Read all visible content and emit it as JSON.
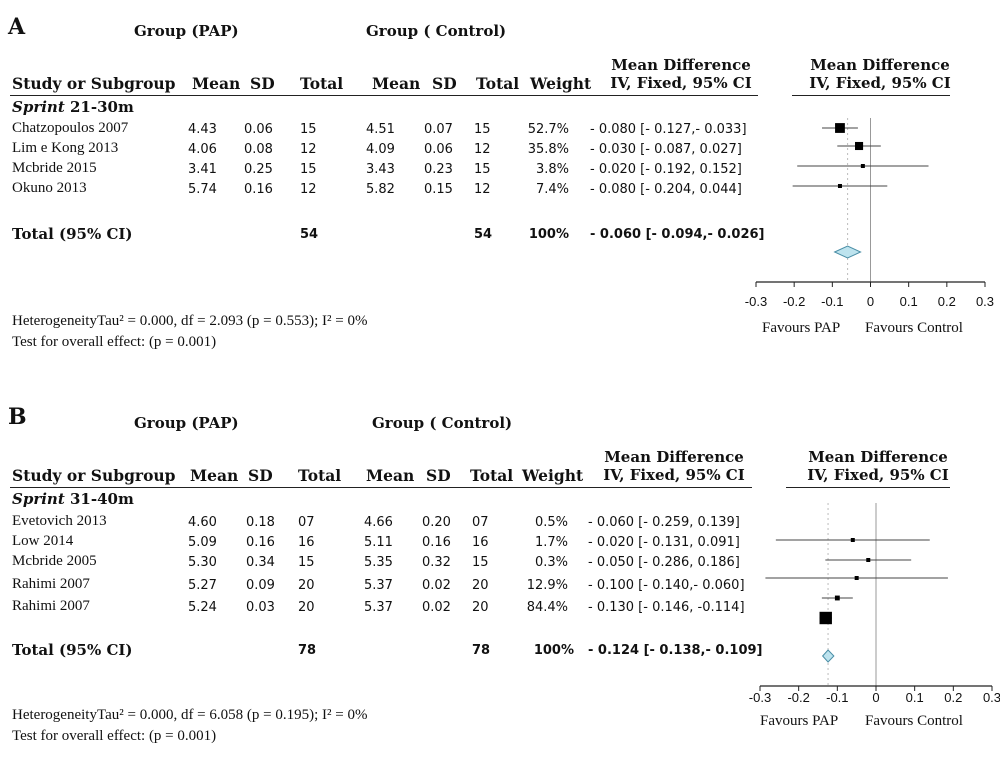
{
  "panels": [
    {
      "letter": "A",
      "group_pap": "Group (PAP)",
      "group_control": "Group ( Control)",
      "headers": {
        "study": "Study or Subgroup",
        "mean1": "Mean",
        "sd1": "SD",
        "total1": "Total",
        "mean2": "Mean",
        "sd2": "SD",
        "total2": "Total",
        "weight": "Weight",
        "md_line1": "Mean Difference",
        "md_line2": "IV, Fixed, 95% CI",
        "plot_line1": "Mean Difference",
        "plot_line2": "IV, Fixed, 95% CI"
      },
      "subgroup_italic": "Sprint",
      "subgroup_rest": " 21-30m",
      "rows": [
        {
          "study": "Chatzopoulos 2007",
          "mean1": "4.43",
          "sd1": "0.06",
          "total1": "15",
          "mean2": "4.51",
          "sd2": "0.07",
          "total2": "15",
          "weight": "52.7%",
          "ci_text": "- 0.080 [- 0.127,- 0.033]"
        },
        {
          "study": "Lim e Kong 2013",
          "mean1": "4.06",
          "sd1": "0.08",
          "total1": "12",
          "mean2": "4.09",
          "sd2": "0.06",
          "total2": "12",
          "weight": "35.8%",
          "ci_text": "- 0.030 [- 0.087,  0.027]"
        },
        {
          "study": "Mcbride 2015",
          "mean1": "3.41",
          "sd1": "0.25",
          "total1": "15",
          "mean2": "3.43",
          "sd2": "0.23",
          "total2": "15",
          "weight": "3.8%",
          "ci_text": "- 0.020 [- 0.192,  0.152]"
        },
        {
          "study": "Okuno 2013",
          "mean1": "5.74",
          "sd1": "0.16",
          "total1": "12",
          "mean2": "5.82",
          "sd2": "0.15",
          "total2": "12",
          "weight": "7.4%",
          "ci_text": "- 0.080 [- 0.204,  0.044]"
        }
      ],
      "total": {
        "label": "Total (95% CI)",
        "total1": "54",
        "total2": "54",
        "weight": "100%",
        "ci_text": "- 0.060 [- 0.094,- 0.026]"
      },
      "footer_line1": "HeterogeneityTau² = 0.000, df = 2.093 (p = 0.553); I² = 0%",
      "footer_line2": "Test for overall effect: (p = 0.001)",
      "axis_ticks": [
        "-0.3",
        "-0.2",
        "-0.1",
        "0",
        "0.1",
        "0.2",
        "0.3"
      ],
      "favours_left": "Favours PAP",
      "favours_right": "Favours Control"
    },
    {
      "letter": "B",
      "group_pap": "Group (PAP)",
      "group_control": "Group ( Control)",
      "headers": {
        "study": "Study or Subgroup",
        "mean1": "Mean",
        "sd1": "SD",
        "total1": "Total",
        "mean2": "Mean",
        "sd2": "SD",
        "total2": "Total",
        "weight": "Weight",
        "md_line1": "Mean Difference",
        "md_line2": "IV, Fixed, 95% CI",
        "plot_line1": "Mean Difference",
        "plot_line2": "IV, Fixed, 95% CI"
      },
      "subgroup_italic": "Sprint",
      "subgroup_rest": " 31-40m",
      "rows": [
        {
          "study": "Evetovich 2013",
          "mean1": "4.60",
          "sd1": "0.18",
          "total1": "07",
          "mean2": "4.66",
          "sd2": "0.20",
          "total2": "07",
          "weight": "0.5%",
          "ci_text": "- 0.060 [- 0.259,  0.139]"
        },
        {
          "study": "Low 2014",
          "mean1": "5.09",
          "sd1": "0.16",
          "total1": "16",
          "mean2": "5.11",
          "sd2": "0.16",
          "total2": "16",
          "weight": "1.7%",
          "ci_text": "- 0.020 [- 0.131,  0.091]"
        },
        {
          "study": "Mcbride 2005",
          "mean1": "5.30",
          "sd1": "0.34",
          "total1": "15",
          "mean2": "5.35",
          "sd2": "0.32",
          "total2": "15",
          "weight": "0.3%",
          "ci_text": "- 0.050 [- 0.286,  0.186]"
        },
        {
          "study": "Rahimi 2007",
          "mean1": "5.27",
          "sd1": "0.09",
          "total1": "20",
          "mean2": "5.37",
          "sd2": "0.02",
          "total2": "20",
          "weight": "12.9%",
          "ci_text": "- 0.100 [- 0.140,- 0.060]"
        },
        {
          "study": "Rahimi 2007",
          "mean1": "5.24",
          "sd1": "0.03",
          "total1": "20",
          "mean2": "5.37",
          "sd2": "0.02",
          "total2": "20",
          "weight": "84.4%",
          "ci_text": "- 0.130 [- 0.146, -0.114]"
        }
      ],
      "total": {
        "label": "Total (95% CI)",
        "total1": "78",
        "total2": "78",
        "weight": "100%",
        "ci_text": "- 0.124 [- 0.138,- 0.109]"
      },
      "footer_line1": "HeterogeneityTau² = 0.000, df = 6.058 (p = 0.195); I² = 0%",
      "footer_line2": "Test for overall effect: (p = 0.001)",
      "axis_ticks": [
        "-0.3",
        "-0.2",
        "-0.1",
        "0",
        "0.1",
        "0.2",
        "0.3"
      ],
      "favours_left": "Favours PAP",
      "favours_right": "Favours Control"
    }
  ],
  "colors": {
    "text": "#111111",
    "marker": "#000000",
    "diamond_fill": "#bde3ee",
    "diamond_stroke": "#4a8ea6",
    "ref_line": "#999999"
  },
  "chart_data": [
    {
      "type": "forest",
      "panel": "A",
      "xlim": [
        -0.3,
        0.3
      ],
      "xticks": [
        -0.3,
        -0.2,
        -0.1,
        0,
        0.1,
        0.2,
        0.3
      ],
      "points": [
        {
          "study": "Chatzopoulos 2007",
          "md": -0.08,
          "lower": -0.127,
          "upper": -0.033,
          "weight": 52.7
        },
        {
          "study": "Lim e Kong 2013",
          "md": -0.03,
          "lower": -0.087,
          "upper": 0.027,
          "weight": 35.8
        },
        {
          "study": "Mcbride 2015",
          "md": -0.02,
          "lower": -0.192,
          "upper": 0.152,
          "weight": 3.8
        },
        {
          "study": "Okuno 2013",
          "md": -0.08,
          "lower": -0.204,
          "upper": 0.044,
          "weight": 7.4
        }
      ],
      "pooled": {
        "md": -0.06,
        "lower": -0.094,
        "upper": -0.026
      }
    },
    {
      "type": "forest",
      "panel": "B",
      "xlim": [
        -0.3,
        0.3
      ],
      "xticks": [
        -0.3,
        -0.2,
        -0.1,
        0,
        0.1,
        0.2,
        0.3
      ],
      "points": [
        {
          "study": "Evetovich 2013",
          "md": -0.06,
          "lower": -0.259,
          "upper": 0.139,
          "weight": 0.5
        },
        {
          "study": "Low 2014",
          "md": -0.02,
          "lower": -0.131,
          "upper": 0.091,
          "weight": 1.7
        },
        {
          "study": "Mcbride 2005",
          "md": -0.05,
          "lower": -0.286,
          "upper": 0.186,
          "weight": 0.3
        },
        {
          "study": "Rahimi 2007",
          "md": -0.1,
          "lower": -0.14,
          "upper": -0.06,
          "weight": 12.9
        },
        {
          "study": "Rahimi 2007",
          "md": -0.13,
          "lower": -0.146,
          "upper": -0.114,
          "weight": 84.4
        }
      ],
      "pooled": {
        "md": -0.124,
        "lower": -0.138,
        "upper": -0.109
      }
    }
  ]
}
